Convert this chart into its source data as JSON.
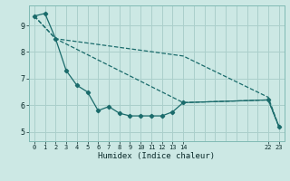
{
  "xlabel": "Humidex (Indice chaleur)",
  "bg_color": "#cce8e4",
  "grid_color": "#aacfcb",
  "line_color": "#1a6b6b",
  "line1_x": [
    0,
    1,
    2,
    3,
    4,
    5,
    6,
    7,
    8,
    9,
    10,
    11,
    12,
    13,
    14,
    22,
    23
  ],
  "line1_y": [
    9.35,
    9.45,
    8.5,
    7.3,
    6.75,
    6.5,
    5.8,
    5.95,
    5.7,
    5.6,
    5.6,
    5.6,
    5.6,
    5.75,
    6.1,
    6.2,
    5.2
  ],
  "line2_x": [
    0,
    2,
    14,
    22,
    23
  ],
  "line2_y": [
    9.35,
    8.5,
    6.1,
    6.2,
    5.2
  ],
  "line3_x": [
    0,
    2,
    14,
    22,
    23
  ],
  "line3_y": [
    9.35,
    8.5,
    7.85,
    6.3,
    5.2
  ],
  "xtick_vals": [
    0,
    1,
    2,
    3,
    4,
    5,
    6,
    7,
    8,
    9,
    10,
    11,
    12,
    13,
    14,
    22,
    23
  ],
  "xtick_labels": [
    "0",
    "1",
    "2",
    "3",
    "4",
    "5",
    "6",
    "7",
    "8",
    "9",
    "10",
    "11",
    "12",
    "13",
    "14",
    "22",
    "23"
  ],
  "xlim": [
    -0.5,
    23.5
  ],
  "ylim": [
    4.65,
    9.75
  ],
  "yticks": [
    5,
    6,
    7,
    8,
    9
  ],
  "grid_xticks": [
    0,
    1,
    2,
    3,
    4,
    5,
    6,
    7,
    8,
    9,
    10,
    11,
    12,
    13,
    14,
    15,
    16,
    17,
    18,
    19,
    20,
    21,
    22,
    23
  ]
}
